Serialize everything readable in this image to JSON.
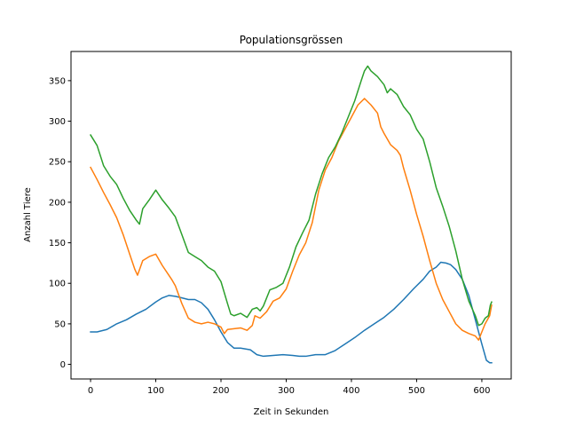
{
  "chart_data": {
    "type": "line",
    "title": "Populationsgrössen",
    "xlabel": "Zeit in Sekunden",
    "ylabel": "Anzahl Tiere",
    "xlim": [
      -30,
      645
    ],
    "ylim": [
      -18,
      386
    ],
    "xticks": [
      0,
      100,
      200,
      300,
      400,
      500,
      600
    ],
    "yticks": [
      0,
      50,
      100,
      150,
      200,
      250,
      300,
      350
    ],
    "grid": false,
    "legend": "none",
    "series": [
      {
        "color": "#1f77b4",
        "points": [
          [
            0,
            40
          ],
          [
            10,
            40
          ],
          [
            25,
            43
          ],
          [
            40,
            50
          ],
          [
            55,
            55
          ],
          [
            70,
            62
          ],
          [
            85,
            68
          ],
          [
            100,
            77
          ],
          [
            110,
            82
          ],
          [
            120,
            85
          ],
          [
            130,
            84
          ],
          [
            140,
            82
          ],
          [
            150,
            80
          ],
          [
            160,
            80
          ],
          [
            170,
            76
          ],
          [
            180,
            68
          ],
          [
            190,
            55
          ],
          [
            200,
            40
          ],
          [
            210,
            27
          ],
          [
            220,
            20
          ],
          [
            230,
            20
          ],
          [
            245,
            18
          ],
          [
            255,
            12
          ],
          [
            265,
            10
          ],
          [
            280,
            11
          ],
          [
            295,
            12
          ],
          [
            310,
            11
          ],
          [
            320,
            10
          ],
          [
            330,
            10
          ],
          [
            345,
            12
          ],
          [
            360,
            12
          ],
          [
            375,
            17
          ],
          [
            390,
            25
          ],
          [
            405,
            33
          ],
          [
            420,
            42
          ],
          [
            435,
            50
          ],
          [
            450,
            58
          ],
          [
            465,
            68
          ],
          [
            480,
            80
          ],
          [
            495,
            93
          ],
          [
            510,
            105
          ],
          [
            520,
            115
          ],
          [
            530,
            120
          ],
          [
            537,
            126
          ],
          [
            545,
            125
          ],
          [
            552,
            123
          ],
          [
            560,
            117
          ],
          [
            570,
            105
          ],
          [
            580,
            85
          ],
          [
            590,
            55
          ],
          [
            600,
            25
          ],
          [
            607,
            5
          ],
          [
            612,
            2
          ],
          [
            615,
            2
          ]
        ]
      },
      {
        "color": "#ff7f0e",
        "points": [
          [
            0,
            243
          ],
          [
            10,
            228
          ],
          [
            20,
            212
          ],
          [
            30,
            197
          ],
          [
            40,
            181
          ],
          [
            50,
            160
          ],
          [
            60,
            136
          ],
          [
            68,
            117
          ],
          [
            72,
            110
          ],
          [
            80,
            128
          ],
          [
            90,
            133
          ],
          [
            100,
            136
          ],
          [
            110,
            122
          ],
          [
            120,
            110
          ],
          [
            125,
            104
          ],
          [
            130,
            97
          ],
          [
            140,
            75
          ],
          [
            150,
            57
          ],
          [
            160,
            52
          ],
          [
            170,
            50
          ],
          [
            180,
            52
          ],
          [
            190,
            50
          ],
          [
            200,
            46
          ],
          [
            205,
            38
          ],
          [
            210,
            43
          ],
          [
            220,
            44
          ],
          [
            230,
            45
          ],
          [
            240,
            42
          ],
          [
            248,
            48
          ],
          [
            252,
            60
          ],
          [
            260,
            57
          ],
          [
            270,
            65
          ],
          [
            280,
            78
          ],
          [
            290,
            82
          ],
          [
            300,
            93
          ],
          [
            310,
            115
          ],
          [
            320,
            135
          ],
          [
            330,
            150
          ],
          [
            340,
            175
          ],
          [
            350,
            215
          ],
          [
            360,
            240
          ],
          [
            370,
            255
          ],
          [
            380,
            275
          ],
          [
            390,
            290
          ],
          [
            400,
            305
          ],
          [
            410,
            320
          ],
          [
            420,
            328
          ],
          [
            430,
            320
          ],
          [
            440,
            310
          ],
          [
            445,
            293
          ],
          [
            450,
            285
          ],
          [
            460,
            271
          ],
          [
            470,
            264
          ],
          [
            475,
            258
          ],
          [
            480,
            242
          ],
          [
            490,
            215
          ],
          [
            500,
            185
          ],
          [
            510,
            158
          ],
          [
            520,
            128
          ],
          [
            530,
            100
          ],
          [
            540,
            80
          ],
          [
            550,
            65
          ],
          [
            560,
            50
          ],
          [
            570,
            42
          ],
          [
            580,
            38
          ],
          [
            590,
            35
          ],
          [
            595,
            30
          ],
          [
            600,
            40
          ],
          [
            605,
            50
          ],
          [
            612,
            60
          ],
          [
            615,
            73
          ]
        ]
      },
      {
        "color": "#2ca02c",
        "points": [
          [
            0,
            283
          ],
          [
            10,
            270
          ],
          [
            20,
            245
          ],
          [
            30,
            232
          ],
          [
            40,
            222
          ],
          [
            50,
            205
          ],
          [
            60,
            190
          ],
          [
            70,
            178
          ],
          [
            75,
            173
          ],
          [
            80,
            192
          ],
          [
            90,
            203
          ],
          [
            100,
            215
          ],
          [
            110,
            203
          ],
          [
            120,
            193
          ],
          [
            130,
            182
          ],
          [
            140,
            160
          ],
          [
            150,
            138
          ],
          [
            160,
            133
          ],
          [
            170,
            128
          ],
          [
            180,
            120
          ],
          [
            190,
            115
          ],
          [
            200,
            102
          ],
          [
            210,
            75
          ],
          [
            215,
            62
          ],
          [
            220,
            60
          ],
          [
            230,
            63
          ],
          [
            240,
            58
          ],
          [
            248,
            68
          ],
          [
            255,
            70
          ],
          [
            260,
            66
          ],
          [
            265,
            72
          ],
          [
            275,
            92
          ],
          [
            285,
            95
          ],
          [
            295,
            100
          ],
          [
            305,
            120
          ],
          [
            315,
            145
          ],
          [
            325,
            162
          ],
          [
            335,
            178
          ],
          [
            345,
            210
          ],
          [
            355,
            235
          ],
          [
            365,
            255
          ],
          [
            375,
            268
          ],
          [
            385,
            285
          ],
          [
            395,
            305
          ],
          [
            405,
            325
          ],
          [
            415,
            350
          ],
          [
            420,
            362
          ],
          [
            425,
            368
          ],
          [
            430,
            362
          ],
          [
            440,
            355
          ],
          [
            450,
            345
          ],
          [
            455,
            335
          ],
          [
            460,
            340
          ],
          [
            470,
            333
          ],
          [
            480,
            318
          ],
          [
            490,
            308
          ],
          [
            500,
            290
          ],
          [
            510,
            278
          ],
          [
            520,
            250
          ],
          [
            530,
            218
          ],
          [
            540,
            195
          ],
          [
            550,
            170
          ],
          [
            560,
            140
          ],
          [
            570,
            105
          ],
          [
            580,
            78
          ],
          [
            590,
            60
          ],
          [
            595,
            48
          ],
          [
            600,
            50
          ],
          [
            605,
            57
          ],
          [
            610,
            60
          ],
          [
            613,
            73
          ],
          [
            615,
            77
          ]
        ]
      }
    ]
  }
}
